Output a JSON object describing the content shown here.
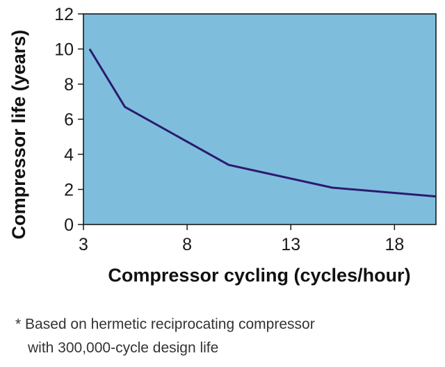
{
  "chart_data": {
    "type": "line",
    "xlabel": "Compressor cycling  (cycles/hour)",
    "ylabel": "Compressor life (years)",
    "xlim": [
      3,
      20
    ],
    "ylim": [
      0,
      12
    ],
    "xticks": [
      "3",
      "8",
      "13",
      "18"
    ],
    "yticks": [
      "0",
      "2",
      "4",
      "6",
      "8",
      "10",
      "12"
    ],
    "grid": false,
    "series": [
      {
        "x": [
          3.3,
          5,
          10,
          15,
          20
        ],
        "y": [
          10,
          6.7,
          3.4,
          2.1,
          1.6
        ]
      }
    ],
    "colors": {
      "plot_background": "#7fbddd",
      "line": "#2a1b6e",
      "frame": "#1a1a1a"
    }
  },
  "footnote": {
    "line1": "* Based on hermetic reciprocating compressor",
    "line2": "with 300,000-cycle design life"
  }
}
